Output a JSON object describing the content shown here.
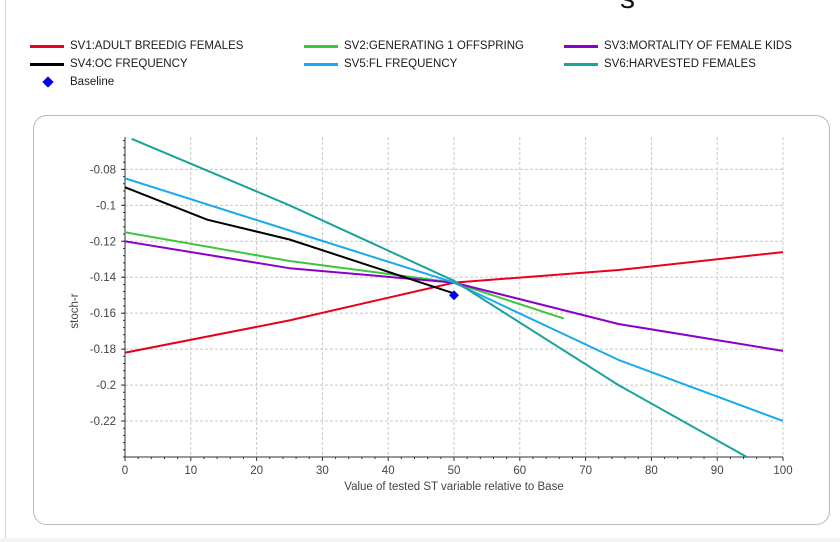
{
  "header": {
    "title_fragment": "s"
  },
  "legend": [
    {
      "name": "SV1:ADULT BREEDIG FEMALES",
      "color": "#e8001c"
    },
    {
      "name": "SV2:GENERATING 1 OFFSPRING",
      "color": "#3bc63b"
    },
    {
      "name": "SV3:MORTALITY OF FEMALE KIDS",
      "color": "#8b00c9"
    },
    {
      "name": "SV4:OC FREQUENCY",
      "color": "#000000"
    },
    {
      "name": "SV5:FL FREQUENCY",
      "color": "#18aaee"
    },
    {
      "name": "SV6:HARVESTED FEMALES",
      "color": "#1aa39a"
    },
    {
      "name": "Baseline",
      "color": "#0000ee"
    }
  ],
  "chart_data": {
    "type": "line",
    "title": "",
    "xlabel": "Value of tested ST variable relative to Base",
    "ylabel": "stoch-r",
    "xlim": [
      0,
      100
    ],
    "ylim": [
      -0.24,
      -0.062
    ],
    "xticks": [
      0,
      10,
      20,
      30,
      40,
      50,
      60,
      70,
      80,
      90,
      100
    ],
    "yticks": [
      -0.08,
      -0.1,
      -0.12,
      -0.14,
      -0.16,
      -0.18,
      -0.2,
      -0.22
    ],
    "ytick_labels": [
      "-0.08",
      "-0.1",
      "-0.12",
      "-0.14",
      "-0.16",
      "-0.18",
      "-0.2",
      "-0.22"
    ],
    "grid": true,
    "legend_position": "top",
    "series": [
      {
        "name": "SV1:ADULT BREEDIG FEMALES",
        "color": "#e8001c",
        "x": [
          0,
          25,
          50,
          75,
          100
        ],
        "y": [
          -0.182,
          -0.164,
          -0.143,
          -0.136,
          -0.126
        ]
      },
      {
        "name": "SV2:GENERATING 1 OFFSPRING",
        "color": "#3bc63b",
        "x": [
          0,
          25,
          50,
          66.7
        ],
        "y": [
          -0.115,
          -0.131,
          -0.143,
          -0.163
        ]
      },
      {
        "name": "SV3:MORTALITY OF FEMALE KIDS",
        "color": "#8b00c9",
        "x": [
          0,
          25,
          50,
          75,
          100
        ],
        "y": [
          -0.12,
          -0.135,
          -0.143,
          -0.166,
          -0.181
        ]
      },
      {
        "name": "SV4:OC FREQUENCY",
        "color": "#000000",
        "x": [
          0,
          12.5,
          25,
          37.5,
          50
        ],
        "y": [
          -0.09,
          -0.108,
          -0.119,
          -0.134,
          -0.149
        ]
      },
      {
        "name": "SV5:FL FREQUENCY",
        "color": "#18aaee",
        "x": [
          0,
          25,
          50,
          75,
          100
        ],
        "y": [
          -0.085,
          -0.114,
          -0.143,
          -0.186,
          -0.22
        ]
      },
      {
        "name": "SV6:HARVESTED FEMALES",
        "color": "#1aa39a",
        "x": [
          1,
          25,
          50,
          75,
          94.5
        ],
        "y": [
          -0.063,
          -0.1,
          -0.142,
          -0.2,
          -0.24
        ]
      }
    ],
    "baseline": {
      "name": "Baseline",
      "x": 50,
      "y": -0.15,
      "color": "#0000ee"
    }
  }
}
